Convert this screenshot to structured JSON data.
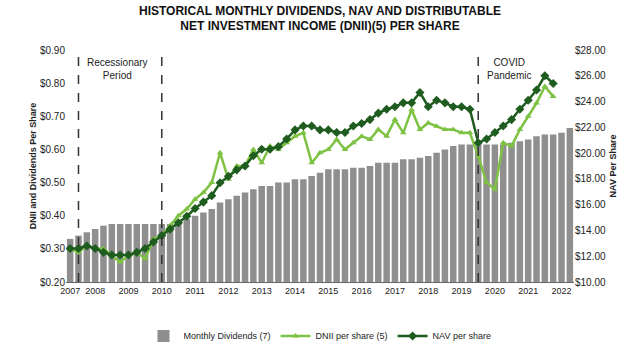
{
  "chart_data": {
    "type": "bar",
    "title": [
      "HISTORICAL MONTHLY DIVIDENDS, NAV AND DISTRIBUTABLE",
      "NET INVESTMENT INCOME (DNII)(5) PER SHARE"
    ],
    "y_label": "DNII and Dividends Per Share",
    "y2_label": "NAV Per Share",
    "categories": [
      "2007",
      null,
      null,
      "2008",
      null,
      null,
      null,
      "2009",
      null,
      null,
      null,
      "2010",
      null,
      null,
      null,
      "2011",
      null,
      null,
      null,
      "2012",
      null,
      null,
      null,
      "2013",
      null,
      null,
      null,
      "2014",
      null,
      null,
      null,
      "2015",
      null,
      null,
      null,
      "2016",
      null,
      null,
      null,
      "2017",
      null,
      null,
      null,
      "2018",
      null,
      null,
      null,
      "2019",
      null,
      null,
      null,
      "2020",
      null,
      null,
      null,
      "2021",
      null,
      null,
      null,
      "2022",
      null
    ],
    "series": [
      {
        "name": "Monthly Dividends (7)",
        "type": "bar",
        "color": "#8f8f8f",
        "values": [
          0.33,
          0.34,
          0.35,
          0.36,
          0.37,
          0.375,
          0.375,
          0.375,
          0.375,
          0.375,
          0.375,
          0.375,
          0.375,
          0.38,
          0.39,
          0.4,
          0.41,
          0.42,
          0.44,
          0.45,
          0.46,
          0.47,
          0.48,
          0.49,
          0.49,
          0.5,
          0.5,
          0.51,
          0.51,
          0.52,
          0.53,
          0.54,
          0.54,
          0.54,
          0.545,
          0.545,
          0.55,
          0.56,
          0.56,
          0.56,
          0.57,
          0.57,
          0.575,
          0.58,
          0.59,
          0.6,
          0.61,
          0.615,
          0.615,
          0.615,
          0.615,
          0.615,
          0.615,
          0.62,
          0.625,
          0.63,
          0.64,
          0.645,
          0.645,
          0.65,
          0.665
        ]
      },
      {
        "name": "DNII per share (5)",
        "type": "line",
        "color": "#7dc242",
        "marker": "triangle-up",
        "line_style": "solid",
        "values": [
          0.3,
          0.29,
          0.31,
          0.3,
          0.3,
          0.28,
          0.26,
          0.28,
          0.29,
          0.27,
          0.33,
          0.34,
          0.37,
          0.4,
          0.42,
          0.45,
          0.47,
          0.5,
          0.59,
          0.51,
          0.55,
          0.55,
          0.6,
          0.56,
          0.61,
          0.6,
          0.62,
          0.64,
          0.65,
          0.56,
          0.59,
          0.6,
          0.63,
          0.6,
          0.62,
          0.64,
          0.63,
          0.66,
          0.64,
          0.69,
          0.65,
          0.72,
          0.66,
          0.68,
          0.67,
          0.66,
          0.66,
          0.65,
          0.65,
          0.58,
          0.5,
          0.48,
          0.62,
          0.61,
          0.66,
          0.7,
          0.74,
          0.79,
          0.76,
          null,
          null
        ]
      },
      {
        "name": "NAV per share",
        "type": "line",
        "axis": "y2",
        "color": "#1f5c1f",
        "marker": "diamond",
        "line_style": "solid",
        "values": [
          12.6,
          12.6,
          12.8,
          12.6,
          12.3,
          12.1,
          12.1,
          12.1,
          12.3,
          12.6,
          13.1,
          13.6,
          14.1,
          14.6,
          15.1,
          15.7,
          16.2,
          16.7,
          17.7,
          18.2,
          18.7,
          19.0,
          19.8,
          20.3,
          20.3,
          20.5,
          21.1,
          21.8,
          22.1,
          22.1,
          21.8,
          21.8,
          21.6,
          21.6,
          22.1,
          22.3,
          22.6,
          23.1,
          23.4,
          23.6,
          23.9,
          23.9,
          24.7,
          23.6,
          24.1,
          23.9,
          23.6,
          23.6,
          23.4,
          20.8,
          21.1,
          21.6,
          22.1,
          22.6,
          23.4,
          24.1,
          24.9,
          26.0,
          25.4,
          null,
          null
        ]
      }
    ],
    "ylim": [
      0.2,
      0.9
    ],
    "yticks": [
      {
        "value": 0.2,
        "label": "$0.20"
      },
      {
        "value": 0.3,
        "label": "$0.30"
      },
      {
        "value": 0.4,
        "label": "$0.40"
      },
      {
        "value": 0.5,
        "label": "$0.50"
      },
      {
        "value": 0.6,
        "label": "$0.60"
      },
      {
        "value": 0.7,
        "label": "$0.70"
      },
      {
        "value": 0.8,
        "label": "$0.80"
      },
      {
        "value": 0.9,
        "label": "$0.90"
      }
    ],
    "y2lim": [
      10,
      28
    ],
    "y2ticks": [
      {
        "value": 10,
        "label": "$10.00"
      },
      {
        "value": 12,
        "label": "$12.00"
      },
      {
        "value": 14,
        "label": "$14.00"
      },
      {
        "value": 16,
        "label": "$16.00"
      },
      {
        "value": 18,
        "label": "$18.00"
      },
      {
        "value": 20,
        "label": "$20.00"
      },
      {
        "value": 22,
        "label": "$22.00"
      },
      {
        "value": 24,
        "label": "$24.00"
      },
      {
        "value": 26,
        "label": "$26.00"
      },
      {
        "value": 28,
        "label": "$28.00"
      }
    ],
    "periods": [
      {
        "text": "Recessionary Period",
        "start": 1,
        "end": 11
      },
      {
        "text": "COVID Pandemic",
        "start": 49
      }
    ],
    "grid": false,
    "legend": "bottom"
  }
}
